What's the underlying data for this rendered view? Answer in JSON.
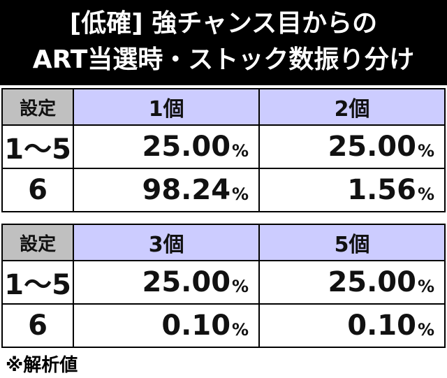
{
  "header": {
    "title_lines": [
      "[低確] 強チャンス目からの",
      "ART当選時・ストック数振り分け"
    ]
  },
  "tables": [
    {
      "columns": [
        "設定",
        "1個",
        "2個"
      ],
      "rows": [
        {
          "label": "1～5",
          "cells": [
            {
              "value": "25.00",
              "unit": "%"
            },
            {
              "value": "25.00",
              "unit": "%"
            }
          ]
        },
        {
          "label": "6",
          "cells": [
            {
              "value": "98.24",
              "unit": "%"
            },
            {
              "value": "1.56",
              "unit": "%"
            }
          ]
        }
      ]
    },
    {
      "columns": [
        "設定",
        "3個",
        "5個"
      ],
      "rows": [
        {
          "label": "1～5",
          "cells": [
            {
              "value": "25.00",
              "unit": "%"
            },
            {
              "value": "25.00",
              "unit": "%"
            }
          ]
        },
        {
          "label": "6",
          "cells": [
            {
              "value": "0.10",
              "unit": "%"
            },
            {
              "value": "0.10",
              "unit": "%"
            }
          ]
        }
      ]
    }
  ],
  "footnote": "※解析値"
}
